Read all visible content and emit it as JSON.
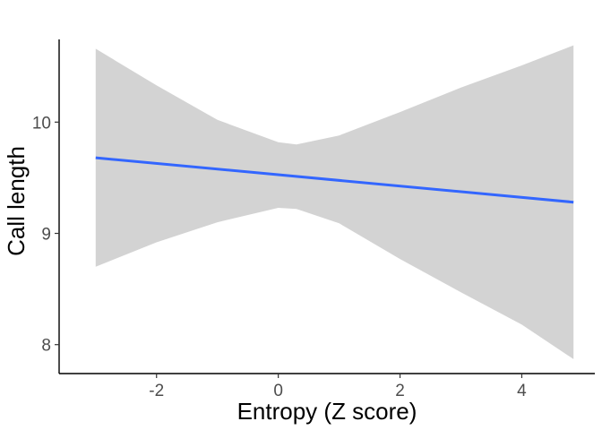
{
  "chart_data": {
    "type": "line",
    "title": "",
    "xlabel": "Entropy (Z score)",
    "ylabel": "Call length",
    "xlim": [
      -3.6,
      5.2
    ],
    "ylim": [
      7.74,
      10.84
    ],
    "x_ticks": [
      -2,
      0,
      2,
      4
    ],
    "x_tick_labels": [
      "-2",
      "0",
      "2",
      "4"
    ],
    "y_ticks": [
      8,
      9,
      10
    ],
    "y_tick_labels": [
      "8",
      "9",
      "10"
    ],
    "grid": false,
    "legend": "none",
    "series": [
      {
        "x": [
          -3.0,
          4.85
        ],
        "y": [
          9.68,
          9.28
        ],
        "color": "#3366FF"
      }
    ],
    "confidence_band": {
      "color": "#D3D3D3",
      "x": [
        -3.0,
        -2.0,
        -1.0,
        0.0,
        0.3,
        1.0,
        2.0,
        3.0,
        4.0,
        4.85
      ],
      "upper": [
        10.66,
        10.33,
        10.02,
        9.82,
        9.8,
        9.88,
        10.09,
        10.31,
        10.51,
        10.69
      ],
      "lower": [
        8.7,
        8.92,
        9.1,
        9.23,
        9.22,
        9.09,
        8.77,
        8.47,
        8.18,
        7.87
      ]
    }
  }
}
